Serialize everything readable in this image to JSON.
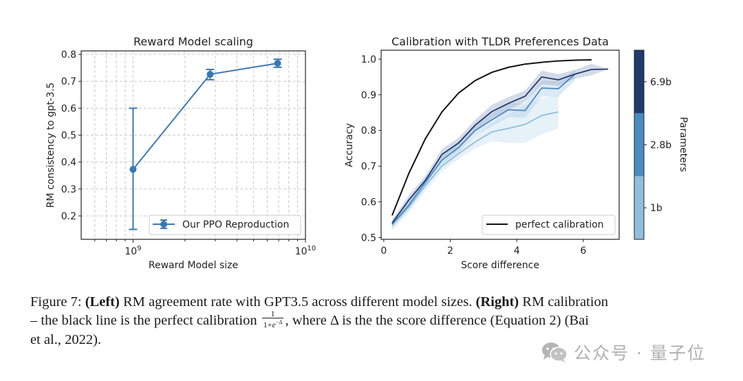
{
  "chart_data": [
    {
      "type": "line",
      "title": "Reward Model scaling",
      "xlabel": "Reward Model size",
      "ylabel": "RM consistency to gpt-3.5",
      "xscale": "log",
      "xlim": [
        500000000,
        10000000000
      ],
      "ylim": [
        0.113,
        0.813
      ],
      "grid": true,
      "x_tick_labels": [
        {
          "value": 1000000000,
          "base": "10",
          "exp": "9"
        },
        {
          "value": 10000000000,
          "base": "10",
          "exp": "10"
        }
      ],
      "y_ticks": [
        0.2,
        0.3,
        0.4,
        0.5,
        0.6,
        0.7,
        0.8
      ],
      "y_tick_labels": [
        "0.2",
        "0.3",
        "0.4",
        "0.5",
        "0.6",
        "0.7",
        "0.8"
      ],
      "legend_position": "lower-right",
      "series": [
        {
          "name": "Our PPO Reproduction",
          "color": "#3a78b4",
          "x": [
            1000000000,
            2800000000,
            6900000000
          ],
          "y": [
            0.373,
            0.726,
            0.767
          ],
          "y_err_low": [
            0.15,
            0.706,
            0.752
          ],
          "y_err_high": [
            0.6,
            0.744,
            0.782
          ]
        }
      ]
    },
    {
      "type": "line",
      "title": "Calibration with TLDR Preferences Data",
      "xlabel": "Score difference",
      "ylabel": "Accuracy",
      "xlim": [
        -0.08,
        7.08
      ],
      "ylim": [
        0.495,
        1.025
      ],
      "grid": false,
      "x_ticks": [
        0,
        2,
        4,
        6
      ],
      "x_tick_labels": [
        "0",
        "2",
        "4",
        "6"
      ],
      "y_ticks": [
        0.5,
        0.6,
        0.7,
        0.8,
        0.9,
        1.0
      ],
      "y_tick_labels": [
        "0.5",
        "0.6",
        "0.7",
        "0.8",
        "0.9",
        "1.0"
      ],
      "legend_position": "lower-right",
      "legend": [
        "perfect calibration"
      ],
      "series": [
        {
          "name": "perfect calibration",
          "color": "#111111",
          "x": [
            0.25,
            0.75,
            1.25,
            1.75,
            2.25,
            2.75,
            3.25,
            3.75,
            4.25,
            4.75,
            5.25,
            5.75,
            6.25
          ],
          "y": [
            0.562,
            0.679,
            0.777,
            0.852,
            0.905,
            0.94,
            0.963,
            0.977,
            0.986,
            0.991,
            0.995,
            0.997,
            0.998
          ]
        },
        {
          "name": "1b",
          "color": "#8fbfdd",
          "band_color": "#c7dff0",
          "x": [
            0.25,
            0.75,
            1.25,
            1.75,
            2.25,
            2.75,
            3.25,
            3.75,
            4.25,
            4.75,
            5.25
          ],
          "y": [
            0.535,
            0.585,
            0.645,
            0.7,
            0.735,
            0.768,
            0.796,
            0.806,
            0.817,
            0.842,
            0.852
          ],
          "y_low": [
            0.52,
            0.57,
            0.63,
            0.685,
            0.72,
            0.75,
            0.77,
            0.765,
            0.765,
            0.79,
            0.805
          ],
          "y_high": [
            0.55,
            0.6,
            0.66,
            0.715,
            0.75,
            0.785,
            0.82,
            0.845,
            0.87,
            0.89,
            0.9
          ]
        },
        {
          "name": "2.8b",
          "color": "#4a8cc2",
          "band_color": "#b3d0e8",
          "x": [
            0.25,
            0.75,
            1.25,
            1.75,
            2.25,
            2.75,
            3.25,
            3.75,
            4.25,
            4.75,
            5.25,
            5.75
          ],
          "y": [
            0.537,
            0.59,
            0.655,
            0.717,
            0.752,
            0.8,
            0.83,
            0.858,
            0.856,
            0.919,
            0.917,
            0.958
          ],
          "y_low": [
            0.525,
            0.578,
            0.642,
            0.703,
            0.738,
            0.785,
            0.812,
            0.838,
            0.835,
            0.895,
            0.895,
            0.94
          ],
          "y_high": [
            0.55,
            0.602,
            0.668,
            0.73,
            0.765,
            0.815,
            0.848,
            0.876,
            0.876,
            0.94,
            0.938,
            0.97
          ]
        },
        {
          "name": "6.9b",
          "color": "#1f3a6e",
          "band_color": "#9fb0cb",
          "x": [
            0.25,
            0.75,
            1.25,
            1.75,
            2.25,
            2.75,
            3.25,
            3.75,
            4.25,
            4.75,
            5.25,
            5.75,
            6.25,
            6.75
          ],
          "y": [
            0.54,
            0.605,
            0.66,
            0.733,
            0.765,
            0.815,
            0.853,
            0.876,
            0.896,
            0.95,
            0.942,
            0.958,
            0.971,
            0.972
          ],
          "y_low": [
            0.53,
            0.593,
            0.647,
            0.718,
            0.75,
            0.8,
            0.835,
            0.858,
            0.88,
            0.93,
            0.925,
            0.945,
            0.955,
            0.972
          ],
          "y_high": [
            0.55,
            0.617,
            0.673,
            0.748,
            0.78,
            0.83,
            0.872,
            0.894,
            0.912,
            0.968,
            0.958,
            0.97,
            0.987,
            0.972
          ]
        }
      ],
      "colorbar": {
        "label": "Parameters",
        "levels": [
          {
            "label": "1b",
            "color": "#8fbfdd"
          },
          {
            "label": "2.8b",
            "color": "#4a8cc2"
          },
          {
            "label": "6.9b",
            "color": "#1f3a6e"
          }
        ]
      }
    }
  ],
  "caption": {
    "figure_label": "Figure 7:",
    "left_bold": "(Left)",
    "left_text": " RM agreement rate with GPT3.5 across different model sizes. ",
    "right_bold": "(Right)",
    "right_text": " RM calibration",
    "line2_start": "– the black line is the perfect calibration ",
    "frac_num": "1",
    "frac_den_a": "1+",
    "frac_den_e": "e",
    "frac_den_exp": "−Δ",
    "line2_end": ", where Δ is the the score difference (Equation 2) (Bai",
    "line3": "et al., 2022)."
  },
  "watermark": {
    "icon": "wechat-icon",
    "text": "公众号 · 量子位"
  }
}
